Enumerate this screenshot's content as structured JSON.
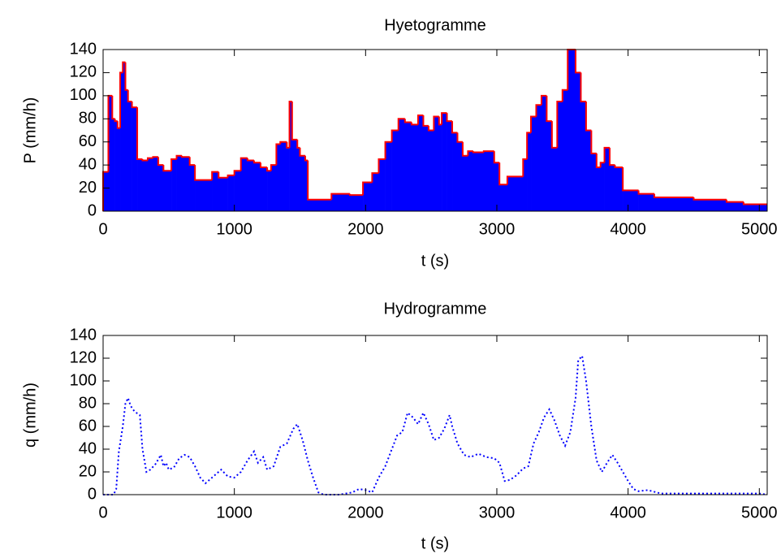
{
  "chart_data": [
    {
      "type": "histogram",
      "title": "Hyetogramme",
      "xlabel": "t (s)",
      "ylabel": "P (mm/h)",
      "color": "#0000ff",
      "edge_color": "#ff0000",
      "bins": [
        0,
        40,
        70,
        90,
        110,
        130,
        150,
        170,
        190,
        220,
        260,
        300,
        340,
        380,
        420,
        460,
        520,
        560,
        600,
        660,
        700,
        830,
        880,
        950,
        1000,
        1050,
        1100,
        1150,
        1200,
        1250,
        1280,
        1320,
        1350,
        1400,
        1420,
        1440,
        1480,
        1500,
        1540,
        1560,
        1740,
        1880,
        1980,
        2050,
        2100,
        2150,
        2200,
        2250,
        2300,
        2350,
        2400,
        2440,
        2480,
        2520,
        2560,
        2580,
        2620,
        2660,
        2700,
        2740,
        2780,
        2820,
        2900,
        2980,
        3020,
        3080,
        3200,
        3230,
        3260,
        3300,
        3340,
        3380,
        3420,
        3460,
        3500,
        3540,
        3600,
        3640,
        3680,
        3720,
        3760,
        3790,
        3820,
        3860,
        3900,
        3960,
        4080,
        4200,
        4500,
        4750,
        4880,
        5060
      ],
      "values": [
        34,
        100,
        80,
        78,
        72,
        120,
        129,
        105,
        95,
        90,
        45,
        44,
        46,
        47,
        40,
        35,
        45,
        48,
        47,
        40,
        27,
        34,
        29,
        31,
        35,
        46,
        44,
        42,
        38,
        35,
        40,
        58,
        60,
        55,
        95,
        62,
        55,
        48,
        44,
        10,
        15,
        14,
        25,
        33,
        45,
        60,
        70,
        80,
        77,
        75,
        83,
        74,
        70,
        82,
        75,
        85,
        78,
        68,
        60,
        48,
        52,
        51,
        52,
        42,
        23,
        30,
        45,
        68,
        82,
        92,
        100,
        78,
        55,
        95,
        105,
        140,
        120,
        95,
        70,
        50,
        38,
        42,
        55,
        40,
        38,
        18,
        15,
        12,
        10,
        8,
        6
      ],
      "xlim": [
        0,
        5060
      ],
      "ylim": [
        0,
        140
      ],
      "xticks": [
        0,
        1000,
        2000,
        3000,
        4000,
        5000
      ],
      "yticks": [
        0,
        20,
        40,
        60,
        80,
        100,
        120,
        140
      ]
    },
    {
      "type": "line",
      "title": "Hydrogramme",
      "xlabel": "t (s)",
      "ylabel": "q (mm/h)",
      "color": "#0000ff",
      "dashed": true,
      "x": [
        0,
        80,
        100,
        120,
        150,
        170,
        190,
        210,
        240,
        280,
        300,
        330,
        360,
        400,
        440,
        460,
        480,
        500,
        540,
        580,
        620,
        660,
        700,
        740,
        780,
        820,
        860,
        900,
        950,
        1000,
        1050,
        1100,
        1150,
        1180,
        1220,
        1250,
        1300,
        1350,
        1400,
        1450,
        1480,
        1520,
        1560,
        1600,
        1640,
        1680,
        1800,
        1900,
        1950,
        2000,
        2050,
        2100,
        2150,
        2200,
        2240,
        2280,
        2320,
        2360,
        2400,
        2440,
        2480,
        2520,
        2560,
        2600,
        2640,
        2660,
        2700,
        2750,
        2800,
        2860,
        2920,
        2980,
        3020,
        3060,
        3100,
        3150,
        3200,
        3240,
        3280,
        3320,
        3360,
        3400,
        3440,
        3480,
        3520,
        3560,
        3600,
        3620,
        3650,
        3680,
        3720,
        3760,
        3800,
        3840,
        3880,
        3920,
        3960,
        4000,
        4040,
        4080,
        4150,
        4250,
        4400,
        5000,
        5060
      ],
      "values": [
        0,
        0,
        5,
        38,
        60,
        80,
        85,
        78,
        73,
        70,
        40,
        20,
        22,
        27,
        35,
        25,
        28,
        22,
        24,
        32,
        35,
        33,
        25,
        15,
        10,
        14,
        18,
        22,
        16,
        15,
        20,
        30,
        38,
        28,
        33,
        22,
        25,
        42,
        45,
        58,
        62,
        48,
        30,
        15,
        2,
        0,
        0,
        2,
        5,
        4,
        2,
        15,
        25,
        40,
        52,
        55,
        72,
        68,
        62,
        72,
        62,
        48,
        50,
        58,
        70,
        60,
        45,
        35,
        33,
        36,
        33,
        32,
        28,
        12,
        13,
        17,
        23,
        25,
        45,
        55,
        68,
        75,
        65,
        52,
        43,
        55,
        85,
        118,
        122,
        100,
        60,
        30,
        20,
        28,
        35,
        28,
        20,
        12,
        5,
        3,
        4,
        1,
        1,
        1,
        0
      ],
      "xlim": [
        0,
        5060
      ],
      "ylim": [
        0,
        140
      ],
      "xticks": [
        0,
        1000,
        2000,
        3000,
        4000,
        5000
      ],
      "yticks": [
        0,
        20,
        40,
        60,
        80,
        100,
        120,
        140
      ]
    }
  ]
}
